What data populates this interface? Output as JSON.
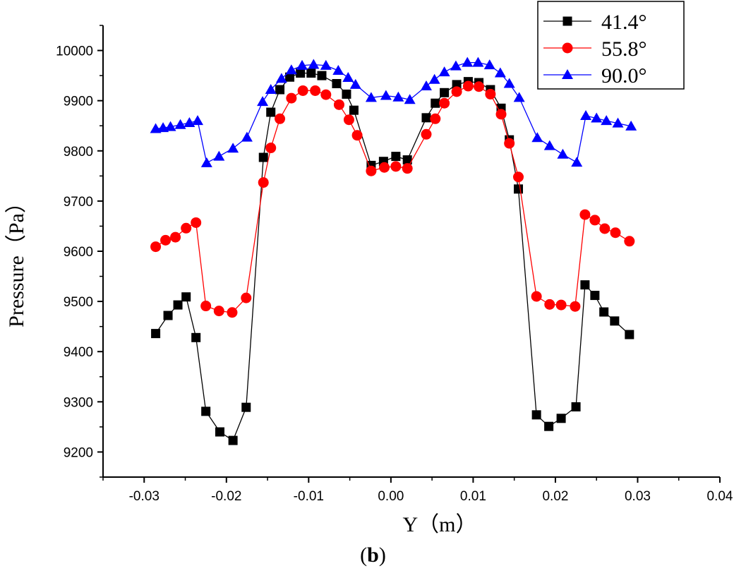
{
  "chart_data": {
    "type": "line",
    "title": "",
    "xlabel": "Y（m）",
    "ylabel": "Pressure（Pa）",
    "xlim": [
      -0.035,
      0.04
    ],
    "ylim": [
      9150,
      10050
    ],
    "xticks": [
      -0.03,
      -0.02,
      -0.01,
      0.0,
      0.01,
      0.02,
      0.03,
      0.04
    ],
    "xtick_labels": [
      "-0.03",
      "-0.02",
      "-0.01",
      "0.00",
      "0.01",
      "0.02",
      "0.03",
      "0.04"
    ],
    "yticks": [
      9200,
      9300,
      9400,
      9500,
      9600,
      9700,
      9800,
      9900,
      10000
    ],
    "ytick_labels": [
      "9200",
      "9300",
      "9400",
      "9500",
      "9600",
      "9700",
      "9800",
      "9900",
      "10000"
    ],
    "legend_position": "top-right",
    "series": [
      {
        "name": "41.4°",
        "color": "#000000",
        "marker": "square",
        "x": [
          -0.0286,
          -0.0271,
          -0.0259,
          -0.0249,
          -0.0237,
          -0.0225,
          -0.0208,
          -0.0192,
          -0.0176,
          -0.0155,
          -0.0146,
          -0.0135,
          -0.0123,
          -0.011,
          -0.0097,
          -0.0084,
          -0.0066,
          -0.0054,
          -0.0045,
          -0.0024,
          -0.0009,
          0.0006,
          0.002,
          0.0043,
          0.0054,
          0.0065,
          0.008,
          0.0094,
          0.0107,
          0.0121,
          0.0134,
          0.0144,
          0.0155,
          0.0177,
          0.0192,
          0.0207,
          0.0225,
          0.0236,
          0.0248,
          0.0259,
          0.0272,
          0.029
        ],
        "y": [
          9436,
          9472,
          9493,
          9509,
          9428,
          9281,
          9240,
          9223,
          9289,
          9787,
          9877,
          9922,
          9947,
          9955,
          9955,
          9950,
          9934,
          9913,
          9881,
          9771,
          9779,
          9789,
          9782,
          9866,
          9895,
          9916,
          9932,
          9938,
          9936,
          9922,
          9885,
          9822,
          9724,
          9274,
          9251,
          9267,
          9290,
          9533,
          9512,
          9479,
          9461,
          9434
        ]
      },
      {
        "name": "55.8°",
        "color": "#ff0000",
        "marker": "circle",
        "x": [
          -0.0286,
          -0.0274,
          -0.0262,
          -0.0249,
          -0.0237,
          -0.0225,
          -0.0209,
          -0.0193,
          -0.0176,
          -0.0155,
          -0.0146,
          -0.0135,
          -0.0121,
          -0.0107,
          -0.0092,
          -0.0079,
          -0.0063,
          -0.0051,
          -0.0041,
          -0.0024,
          -0.0008,
          0.0006,
          0.002,
          0.0043,
          0.0054,
          0.0065,
          0.008,
          0.0094,
          0.0107,
          0.0121,
          0.0134,
          0.0144,
          0.0155,
          0.0177,
          0.0193,
          0.0207,
          0.0224,
          0.0236,
          0.0248,
          0.026,
          0.0273,
          0.029
        ],
        "y": [
          9609,
          9622,
          9628,
          9646,
          9657,
          9491,
          9481,
          9478,
          9507,
          9737,
          9806,
          9864,
          9905,
          9920,
          9920,
          9912,
          9892,
          9862,
          9831,
          9760,
          9767,
          9769,
          9765,
          9833,
          9864,
          9895,
          9918,
          9929,
          9928,
          9913,
          9873,
          9815,
          9748,
          9510,
          9494,
          9493,
          9490,
          9673,
          9662,
          9645,
          9637,
          9620
        ]
      },
      {
        "name": "90.0°",
        "color": "#0000ff",
        "marker": "triangle",
        "x": [
          -0.0286,
          -0.0277,
          -0.0268,
          -0.0256,
          -0.0245,
          -0.0235,
          -0.0224,
          -0.0209,
          -0.0192,
          -0.0175,
          -0.0156,
          -0.0146,
          -0.0133,
          -0.0121,
          -0.0108,
          -0.0094,
          -0.0079,
          -0.0064,
          -0.0052,
          -0.0043,
          -0.0024,
          -0.0006,
          0.0009,
          0.0023,
          0.0043,
          0.0053,
          0.0065,
          0.0079,
          0.0093,
          0.0106,
          0.012,
          0.0133,
          0.0144,
          0.0156,
          0.0178,
          0.0193,
          0.0209,
          0.0226,
          0.0237,
          0.025,
          0.0262,
          0.0276,
          0.0292
        ],
        "y": [
          9844,
          9846,
          9848,
          9852,
          9856,
          9860,
          9776,
          9789,
          9805,
          9827,
          9898,
          9922,
          9944,
          9961,
          9970,
          9972,
          9970,
          9960,
          9946,
          9932,
          9906,
          9910,
          9907,
          9902,
          9929,
          9942,
          9957,
          9969,
          9976,
          9976,
          9971,
          9955,
          9934,
          9906,
          9826,
          9810,
          9793,
          9777,
          9870,
          9865,
          9860,
          9855,
          9849
        ]
      }
    ]
  },
  "caption": {
    "open": "(",
    "label": "b",
    "close": ")"
  }
}
